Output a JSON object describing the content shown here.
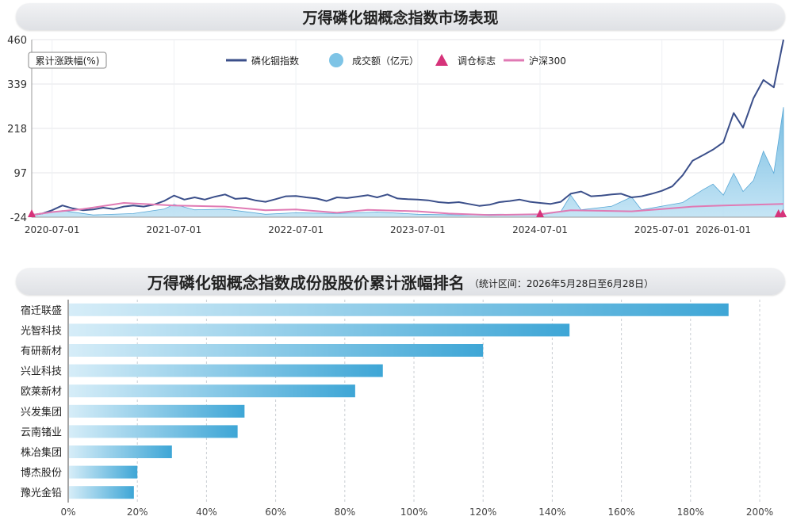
{
  "chart1": {
    "title": "万得磷化铟概念指数市场表现",
    "ylabel": "累计涨跌幅(%)",
    "legend": [
      {
        "name": "磷化铟指数",
        "type": "line",
        "color": "#3b4f8a"
      },
      {
        "name": "成交额（亿元）",
        "type": "area",
        "color": "#7ec4e6"
      },
      {
        "name": "调仓标志",
        "type": "marker",
        "color": "#d6337a"
      },
      {
        "name": "沪深300",
        "type": "line",
        "color": "#e07ab4"
      }
    ],
    "ytick_labels": [
      "460",
      "339",
      "218",
      "97",
      "-24"
    ]
  },
  "chart2": {
    "title": "万得磷化铟概念指数成份股股价累计涨幅排名",
    "subtitle": "（统计区间：2026年5月28日至6月28日）"
  },
  "chart_data": [
    {
      "type": "line",
      "title": "万得磷化铟概念指数市场表现",
      "ylabel": "累计涨跌幅(%)",
      "ylim": [
        -24,
        460
      ],
      "yticks": [
        460,
        339,
        218,
        97,
        -24
      ],
      "xtick_labels": [
        "2020-07-01",
        "2021-07-01",
        "2022-07-01",
        "2023-07-01",
        "2024-07-01",
        "2025-07-01",
        "2026-01-01"
      ],
      "xrange": [
        "2020-05-01",
        "2026-06-30"
      ],
      "legend_position": "top",
      "series": [
        {
          "name": "磷化铟指数",
          "points": [
            [
              "2020-05-01",
              -18
            ],
            [
              "2020-06-01",
              -14
            ],
            [
              "2020-07-01",
              -5
            ],
            [
              "2020-08-01",
              8
            ],
            [
              "2020-09-01",
              0
            ],
            [
              "2020-10-01",
              -5
            ],
            [
              "2020-11-01",
              -3
            ],
            [
              "2020-12-01",
              2
            ],
            [
              "2021-01-01",
              -2
            ],
            [
              "2021-02-01",
              5
            ],
            [
              "2021-03-01",
              8
            ],
            [
              "2021-04-01",
              5
            ],
            [
              "2021-05-01",
              10
            ],
            [
              "2021-06-01",
              20
            ],
            [
              "2021-07-01",
              35
            ],
            [
              "2021-08-01",
              24
            ],
            [
              "2021-09-01",
              30
            ],
            [
              "2021-10-01",
              24
            ],
            [
              "2021-11-01",
              32
            ],
            [
              "2021-12-01",
              38
            ],
            [
              "2022-01-01",
              26
            ],
            [
              "2022-02-01",
              28
            ],
            [
              "2022-03-01",
              22
            ],
            [
              "2022-04-01",
              18
            ],
            [
              "2022-05-01",
              25
            ],
            [
              "2022-06-01",
              33
            ],
            [
              "2022-07-01",
              34
            ],
            [
              "2022-08-01",
              30
            ],
            [
              "2022-09-01",
              27
            ],
            [
              "2022-10-01",
              20
            ],
            [
              "2022-11-01",
              30
            ],
            [
              "2022-12-01",
              28
            ],
            [
              "2023-01-01",
              32
            ],
            [
              "2023-02-01",
              36
            ],
            [
              "2023-03-01",
              30
            ],
            [
              "2023-04-01",
              38
            ],
            [
              "2023-05-01",
              27
            ],
            [
              "2023-06-01",
              25
            ],
            [
              "2023-07-01",
              24
            ],
            [
              "2023-08-01",
              22
            ],
            [
              "2023-09-01",
              17
            ],
            [
              "2023-10-01",
              15
            ],
            [
              "2023-11-01",
              17
            ],
            [
              "2023-12-01",
              12
            ],
            [
              "2024-01-01",
              7
            ],
            [
              "2024-02-01",
              10
            ],
            [
              "2024-03-01",
              17
            ],
            [
              "2024-04-01",
              20
            ],
            [
              "2024-05-01",
              24
            ],
            [
              "2024-06-01",
              18
            ],
            [
              "2024-07-01",
              15
            ],
            [
              "2024-08-01",
              12
            ],
            [
              "2024-09-01",
              18
            ],
            [
              "2024-10-01",
              40
            ],
            [
              "2024-11-01",
              46
            ],
            [
              "2024-12-01",
              33
            ],
            [
              "2025-01-01",
              35
            ],
            [
              "2025-02-01",
              38
            ],
            [
              "2025-03-01",
              40
            ],
            [
              "2025-04-01",
              30
            ],
            [
              "2025-05-01",
              33
            ],
            [
              "2025-06-01",
              40
            ],
            [
              "2025-07-01",
              48
            ],
            [
              "2025-08-01",
              60
            ],
            [
              "2025-09-01",
              90
            ],
            [
              "2025-10-01",
              130
            ],
            [
              "2025-11-01",
              145
            ],
            [
              "2025-12-01",
              160
            ],
            [
              "2026-01-01",
              180
            ],
            [
              "2026-02-01",
              260
            ],
            [
              "2026-03-01",
              220
            ],
            [
              "2026-04-01",
              300
            ],
            [
              "2026-05-01",
              350
            ],
            [
              "2026-06-01",
              330
            ],
            [
              "2026-06-30",
              460
            ]
          ]
        },
        {
          "name": "沪深300",
          "points": [
            [
              "2020-05-01",
              -18
            ],
            [
              "2020-07-01",
              -10
            ],
            [
              "2020-10-01",
              -2
            ],
            [
              "2021-02-01",
              15
            ],
            [
              "2021-07-01",
              8
            ],
            [
              "2021-12-01",
              5
            ],
            [
              "2022-04-01",
              -5
            ],
            [
              "2022-07-01",
              -3
            ],
            [
              "2022-11-01",
              -12
            ],
            [
              "2023-02-01",
              -4
            ],
            [
              "2023-07-01",
              -8
            ],
            [
              "2023-10-01",
              -14
            ],
            [
              "2024-02-01",
              -18
            ],
            [
              "2024-07-01",
              -16
            ],
            [
              "2024-10-01",
              -5
            ],
            [
              "2025-04-01",
              -8
            ],
            [
              "2025-07-01",
              -2
            ],
            [
              "2025-10-01",
              5
            ],
            [
              "2026-01-01",
              8
            ],
            [
              "2026-06-30",
              12
            ]
          ]
        }
      ],
      "volume_series": {
        "name": "成交额（亿元）",
        "points": [
          [
            "2020-05-01",
            5
          ],
          [
            "2020-08-01",
            18
          ],
          [
            "2020-11-01",
            6
          ],
          [
            "2021-03-01",
            10
          ],
          [
            "2021-06-01",
            22
          ],
          [
            "2021-07-01",
            35
          ],
          [
            "2021-09-01",
            20
          ],
          [
            "2021-12-01",
            22
          ],
          [
            "2022-04-01",
            8
          ],
          [
            "2022-07-01",
            12
          ],
          [
            "2022-11-01",
            10
          ],
          [
            "2023-03-01",
            14
          ],
          [
            "2023-07-01",
            8
          ],
          [
            "2023-11-01",
            6
          ],
          [
            "2024-03-01",
            8
          ],
          [
            "2024-07-01",
            6
          ],
          [
            "2024-09-01",
            15
          ],
          [
            "2024-10-01",
            60
          ],
          [
            "2024-11-01",
            20
          ],
          [
            "2025-02-01",
            30
          ],
          [
            "2025-04-01",
            55
          ],
          [
            "2025-05-01",
            20
          ],
          [
            "2025-09-01",
            40
          ],
          [
            "2025-11-01",
            75
          ],
          [
            "2025-12-01",
            90
          ],
          [
            "2026-01-01",
            60
          ],
          [
            "2026-02-01",
            120
          ],
          [
            "2026-03-01",
            70
          ],
          [
            "2026-04-01",
            100
          ],
          [
            "2026-05-01",
            180
          ],
          [
            "2026-06-01",
            120
          ],
          [
            "2026-06-30",
            300
          ]
        ]
      },
      "rebalance_markers": [
        "2020-05-01",
        "2024-07-01",
        "2026-06-15",
        "2026-06-28"
      ]
    },
    {
      "type": "bar",
      "orientation": "horizontal",
      "title": "万得磷化铟概念指数成份股股价累计涨幅排名",
      "subtitle": "（统计区间：2026年5月28日至6月28日）",
      "categories": [
        "宿迁联盛",
        "光智科技",
        "有研新材",
        "兴业科技",
        "欧莱新材",
        "兴发集团",
        "云南锗业",
        "株冶集团",
        "博杰股份",
        "豫光金铅"
      ],
      "values": [
        191,
        145,
        120,
        91,
        83,
        51,
        49,
        30,
        20,
        19
      ],
      "xlim": [
        0,
        200
      ],
      "xtick_labels": [
        "0%",
        "20%",
        "40%",
        "60%",
        "80%",
        "100%",
        "120%",
        "140%",
        "160%",
        "180%",
        "200%"
      ],
      "grid": true
    }
  ]
}
